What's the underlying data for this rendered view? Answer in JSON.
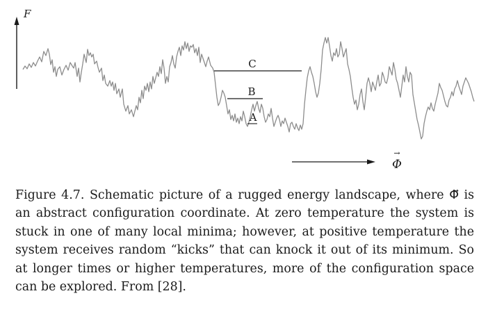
{
  "figure": {
    "axis_label": "F",
    "level_labels": [
      "C",
      "B",
      "A"
    ],
    "coordinate_label": "Φ",
    "coordinate_arrow": "⃗"
  },
  "caption": {
    "fig_label": "Figure 4.7.",
    "text_part1": "Schematic picture of a rugged energy landscape, where",
    "symbol": "Φ⃗",
    "text_part2": "is an abstract configuration coordinate. At zero temperature the system is stuck in one of many local minima; however, at positive temperature the system receives random “kicks” that can knock it out of its minimum. So at longer times or higher temperatures, more of the configuration space can be explored. From [28]."
  },
  "colors": {
    "curve": "#8c8c8c",
    "line": "#1a1a1a",
    "text": "#1a1a1a",
    "background": "#ffffff"
  }
}
